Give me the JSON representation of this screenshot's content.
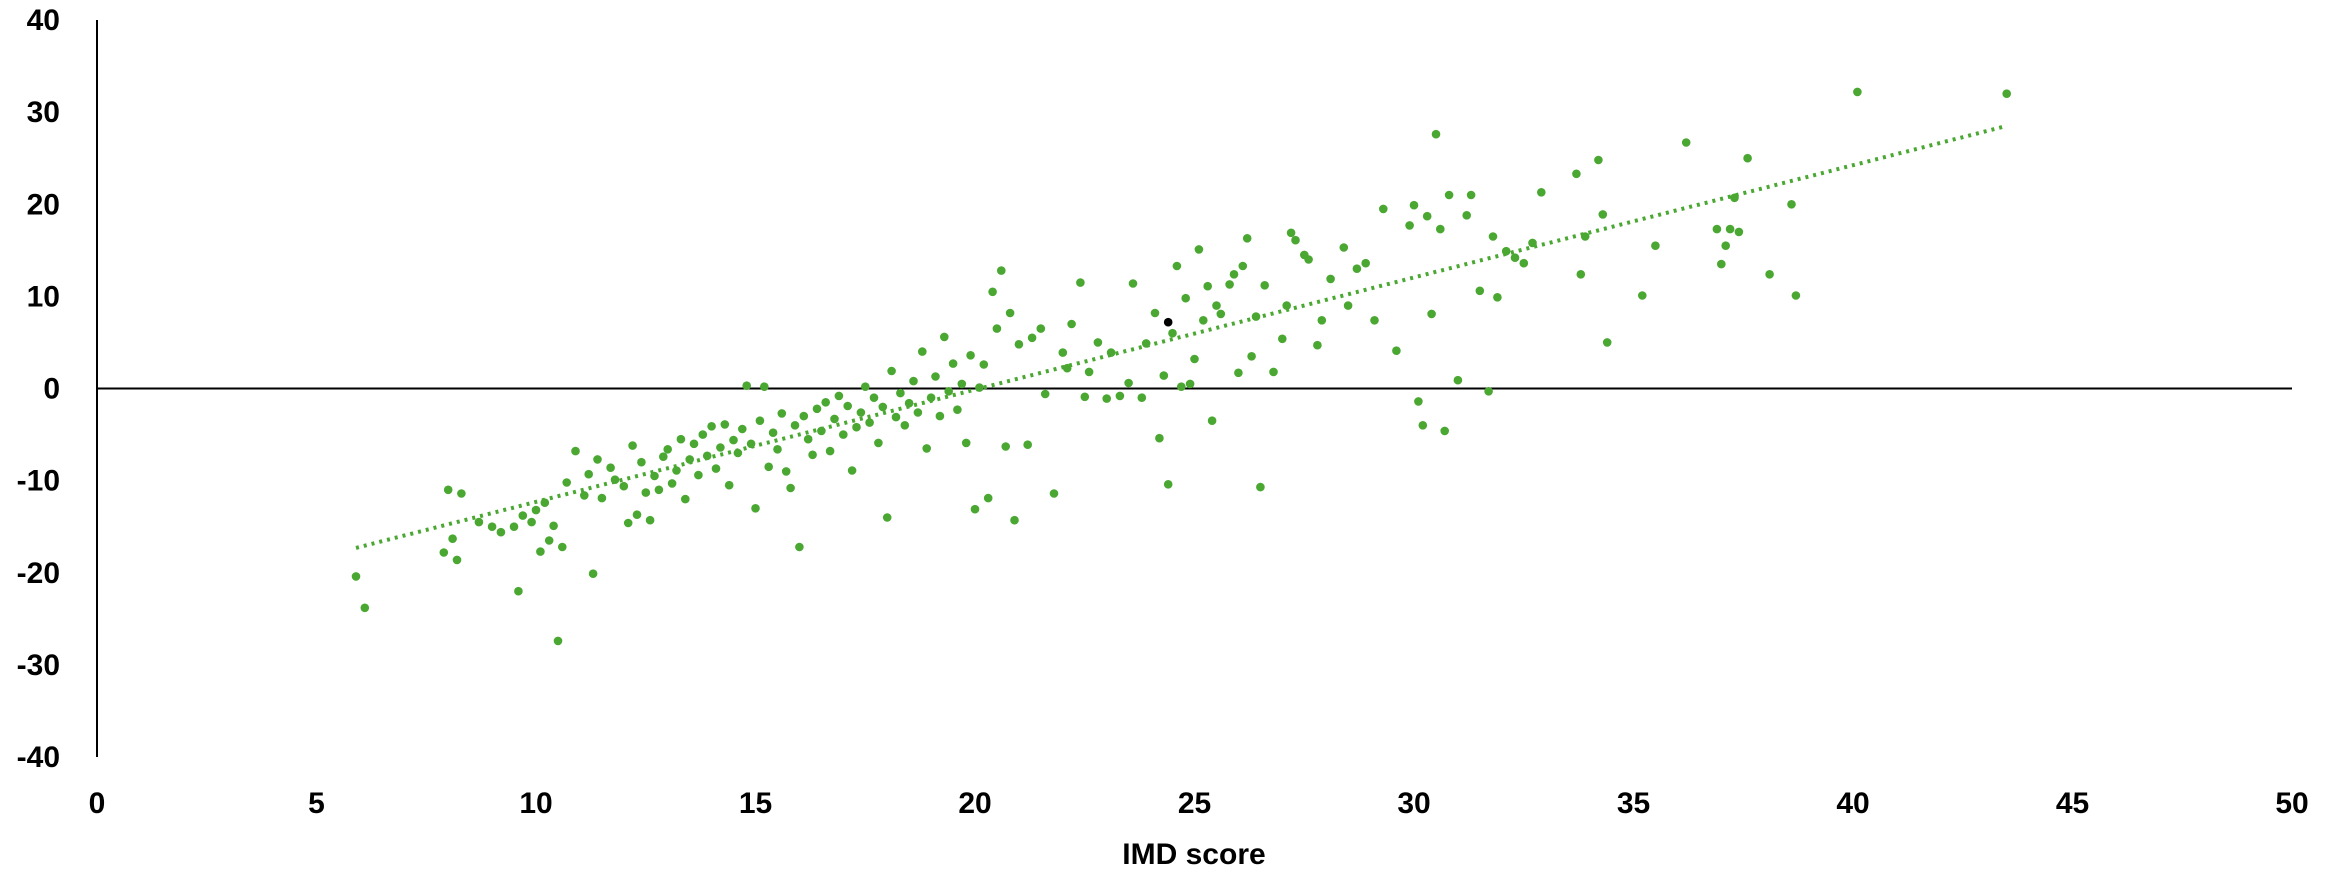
{
  "chart_data": {
    "type": "scatter",
    "title": "",
    "xlabel": "IMD score",
    "ylabel": "",
    "xlim": [
      0,
      50
    ],
    "ylim": [
      -40,
      40
    ],
    "x_ticks": [
      0,
      5,
      10,
      15,
      20,
      25,
      30,
      35,
      40,
      45,
      50
    ],
    "y_ticks": [
      40,
      30,
      20,
      10,
      0,
      -10,
      -20,
      -30,
      -40
    ],
    "grid": false,
    "legend": "none",
    "colors": {
      "points": "#4aa832",
      "highlight": "#000000",
      "trendline": "#4aa832",
      "axes": "#000000"
    },
    "series": [
      {
        "points": [
          [
            5.9,
            -20.4
          ],
          [
            6.1,
            -23.8
          ],
          [
            7.9,
            -17.8
          ],
          [
            8.0,
            -11.0
          ],
          [
            8.1,
            -16.3
          ],
          [
            8.2,
            -18.6
          ],
          [
            8.3,
            -11.4
          ],
          [
            8.7,
            -14.5
          ],
          [
            9.0,
            -15.0
          ],
          [
            9.2,
            -15.6
          ],
          [
            9.5,
            -15.0
          ],
          [
            9.6,
            -22.0
          ],
          [
            9.7,
            -13.8
          ],
          [
            9.9,
            -14.5
          ],
          [
            10.0,
            -13.2
          ],
          [
            10.1,
            -17.7
          ],
          [
            10.2,
            -12.4
          ],
          [
            10.3,
            -16.5
          ],
          [
            10.4,
            -14.9
          ],
          [
            10.5,
            -27.4
          ],
          [
            10.6,
            -17.2
          ],
          [
            10.7,
            -10.2
          ],
          [
            10.9,
            -6.8
          ],
          [
            11.1,
            -11.6
          ],
          [
            11.2,
            -9.3
          ],
          [
            11.3,
            -20.1
          ],
          [
            11.4,
            -7.7
          ],
          [
            11.5,
            -11.9
          ],
          [
            11.7,
            -8.6
          ],
          [
            11.8,
            -9.9
          ],
          [
            12.0,
            -10.6
          ],
          [
            12.1,
            -14.6
          ],
          [
            12.2,
            -6.2
          ],
          [
            12.3,
            -13.7
          ],
          [
            12.4,
            -8.0
          ],
          [
            12.5,
            -11.3
          ],
          [
            12.6,
            -14.3
          ],
          [
            12.7,
            -9.5
          ],
          [
            12.8,
            -11.0
          ],
          [
            12.9,
            -7.4
          ],
          [
            13.0,
            -6.6
          ],
          [
            13.1,
            -10.3
          ],
          [
            13.2,
            -8.9
          ],
          [
            13.3,
            -5.5
          ],
          [
            13.4,
            -12.0
          ],
          [
            13.5,
            -7.7
          ],
          [
            13.6,
            -6.0
          ],
          [
            13.7,
            -9.4
          ],
          [
            13.8,
            -5.0
          ],
          [
            13.9,
            -7.3
          ],
          [
            14.0,
            -4.1
          ],
          [
            14.1,
            -8.7
          ],
          [
            14.2,
            -6.4
          ],
          [
            14.3,
            -3.9
          ],
          [
            14.4,
            -10.5
          ],
          [
            14.5,
            -5.6
          ],
          [
            14.6,
            -7.0
          ],
          [
            14.7,
            -4.4
          ],
          [
            14.8,
            0.3
          ],
          [
            14.9,
            -6.0
          ],
          [
            15.0,
            -13.0
          ],
          [
            15.1,
            -3.5
          ],
          [
            15.2,
            0.2
          ],
          [
            15.3,
            -8.5
          ],
          [
            15.4,
            -4.8
          ],
          [
            15.5,
            -6.6
          ],
          [
            15.6,
            -2.7
          ],
          [
            15.7,
            -9.0
          ],
          [
            15.8,
            -10.8
          ],
          [
            15.9,
            -4.0
          ],
          [
            16.0,
            -17.2
          ],
          [
            16.1,
            -3.0
          ],
          [
            16.2,
            -5.5
          ],
          [
            16.3,
            -7.2
          ],
          [
            16.4,
            -2.2
          ],
          [
            16.5,
            -4.6
          ],
          [
            16.6,
            -1.5
          ],
          [
            16.7,
            -6.8
          ],
          [
            16.8,
            -3.3
          ],
          [
            16.9,
            -0.8
          ],
          [
            17.0,
            -5.0
          ],
          [
            17.1,
            -1.9
          ],
          [
            17.2,
            -8.9
          ],
          [
            17.3,
            -4.2
          ],
          [
            17.4,
            -2.6
          ],
          [
            17.5,
            0.2
          ],
          [
            17.6,
            -3.7
          ],
          [
            17.7,
            -1.0
          ],
          [
            17.8,
            -5.9
          ],
          [
            17.9,
            -2.0
          ],
          [
            18.0,
            -14.0
          ],
          [
            18.1,
            1.9
          ],
          [
            18.2,
            -3.1
          ],
          [
            18.3,
            -0.5
          ],
          [
            18.4,
            -4.0
          ],
          [
            18.5,
            -1.6
          ],
          [
            18.6,
            0.8
          ],
          [
            18.7,
            -2.6
          ],
          [
            18.8,
            4.0
          ],
          [
            18.9,
            -6.5
          ],
          [
            19.0,
            -1.0
          ],
          [
            19.1,
            1.3
          ],
          [
            19.2,
            -3.0
          ],
          [
            19.3,
            5.6
          ],
          [
            19.4,
            -0.3
          ],
          [
            19.5,
            2.7
          ],
          [
            19.6,
            -2.3
          ],
          [
            19.7,
            0.5
          ],
          [
            19.8,
            -5.9
          ],
          [
            19.9,
            3.6
          ],
          [
            20.0,
            -13.1
          ],
          [
            20.1,
            0.1
          ],
          [
            20.2,
            2.6
          ],
          [
            20.3,
            -11.9
          ],
          [
            20.4,
            10.5
          ],
          [
            20.5,
            6.5
          ],
          [
            20.6,
            12.8
          ],
          [
            20.7,
            -6.3
          ],
          [
            20.8,
            8.2
          ],
          [
            20.9,
            -14.3
          ],
          [
            21.0,
            4.8
          ],
          [
            21.2,
            -6.1
          ],
          [
            21.3,
            5.5
          ],
          [
            21.5,
            6.5
          ],
          [
            21.6,
            -0.6
          ],
          [
            21.8,
            -11.4
          ],
          [
            22.0,
            3.9
          ],
          [
            22.1,
            2.2
          ],
          [
            22.2,
            7.0
          ],
          [
            22.4,
            11.5
          ],
          [
            22.5,
            -0.9
          ],
          [
            22.6,
            1.8
          ],
          [
            22.8,
            5.0
          ],
          [
            23.0,
            -1.1
          ],
          [
            23.1,
            3.9
          ],
          [
            23.3,
            -0.8
          ],
          [
            23.5,
            0.6
          ],
          [
            23.6,
            11.4
          ],
          [
            23.8,
            -1.0
          ],
          [
            23.9,
            4.9
          ],
          [
            24.1,
            8.2
          ],
          [
            24.2,
            -5.4
          ],
          [
            24.3,
            1.4
          ],
          [
            24.4,
            -10.4
          ],
          [
            24.5,
            6.0
          ],
          [
            24.6,
            13.3
          ],
          [
            24.7,
            0.2
          ],
          [
            24.8,
            9.8
          ],
          [
            24.9,
            0.5
          ],
          [
            25.0,
            3.2
          ],
          [
            25.1,
            15.1
          ],
          [
            25.2,
            7.4
          ],
          [
            25.3,
            11.1
          ],
          [
            25.4,
            -3.5
          ],
          [
            25.5,
            9.0
          ],
          [
            25.6,
            8.1
          ],
          [
            25.8,
            11.3
          ],
          [
            25.9,
            12.4
          ],
          [
            26.0,
            1.7
          ],
          [
            26.1,
            13.3
          ],
          [
            26.2,
            16.3
          ],
          [
            26.3,
            3.5
          ],
          [
            26.4,
            7.8
          ],
          [
            26.5,
            -10.7
          ],
          [
            26.6,
            11.2
          ],
          [
            26.8,
            1.8
          ],
          [
            27.0,
            5.4
          ],
          [
            27.1,
            9.0
          ],
          [
            27.2,
            16.9
          ],
          [
            27.3,
            16.1
          ],
          [
            27.5,
            14.5
          ],
          [
            27.6,
            14.0
          ],
          [
            27.8,
            4.7
          ],
          [
            27.9,
            7.4
          ],
          [
            28.1,
            11.9
          ],
          [
            28.4,
            15.3
          ],
          [
            28.5,
            9.0
          ],
          [
            28.7,
            13.0
          ],
          [
            28.9,
            13.6
          ],
          [
            29.1,
            7.4
          ],
          [
            29.3,
            19.5
          ],
          [
            29.6,
            4.1
          ],
          [
            29.9,
            17.7
          ],
          [
            30.0,
            19.9
          ],
          [
            30.1,
            -1.4
          ],
          [
            30.2,
            -4.0
          ],
          [
            30.3,
            18.7
          ],
          [
            30.4,
            8.1
          ],
          [
            30.5,
            27.6
          ],
          [
            30.6,
            17.3
          ],
          [
            30.7,
            -4.6
          ],
          [
            30.8,
            21.0
          ],
          [
            31.0,
            0.9
          ],
          [
            31.2,
            18.8
          ],
          [
            31.3,
            21.0
          ],
          [
            31.5,
            10.6
          ],
          [
            31.7,
            -0.3
          ],
          [
            31.8,
            16.5
          ],
          [
            31.9,
            9.9
          ],
          [
            32.1,
            14.9
          ],
          [
            32.3,
            14.2
          ],
          [
            32.5,
            13.6
          ],
          [
            32.7,
            15.8
          ],
          [
            32.9,
            21.3
          ],
          [
            33.7,
            23.3
          ],
          [
            33.8,
            12.4
          ],
          [
            33.9,
            16.5
          ],
          [
            34.2,
            24.8
          ],
          [
            34.3,
            18.9
          ],
          [
            34.4,
            5.0
          ],
          [
            35.2,
            10.1
          ],
          [
            35.5,
            15.5
          ],
          [
            36.2,
            26.7
          ],
          [
            36.9,
            17.3
          ],
          [
            37.0,
            13.5
          ],
          [
            37.1,
            15.5
          ],
          [
            37.2,
            17.3
          ],
          [
            37.3,
            20.7
          ],
          [
            37.4,
            17.0
          ],
          [
            37.6,
            25.0
          ],
          [
            38.1,
            12.4
          ],
          [
            38.6,
            20.0
          ],
          [
            38.7,
            10.1
          ],
          [
            40.1,
            32.2
          ],
          [
            43.5,
            32.0
          ]
        ]
      },
      {
        "points": [
          [
            24.4,
            7.2
          ]
        ]
      }
    ],
    "trendline": {
      "style": "dotted",
      "start": [
        5.9,
        -17.3
      ],
      "end": [
        43.5,
        28.5
      ]
    }
  }
}
